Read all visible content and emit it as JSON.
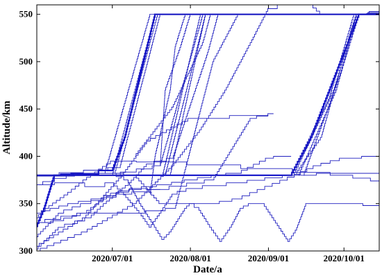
{
  "chart_data": {
    "type": "line",
    "title": "",
    "xlabel": "Date/a",
    "ylabel": "Altitude/km",
    "x_axis": {
      "type": "date",
      "range": [
        "2020-06-01",
        "2020-10-15"
      ],
      "ticks": [
        "2020/07/01",
        "2020/08/01",
        "2020/09/01",
        "2020/10/01"
      ]
    },
    "y_axis": {
      "range": [
        300,
        560
      ],
      "ticks": [
        300,
        350,
        400,
        450,
        500,
        550
      ]
    },
    "grid": false,
    "legend": "none",
    "color": "#1f1fbf",
    "series": [
      {
        "values": [
          [
            "2020-06-01",
            326
          ],
          [
            "2020-06-04",
            345
          ],
          [
            "2020-06-08",
            380
          ],
          [
            "2020-09-10",
            380
          ],
          [
            "2020-09-18",
            420
          ],
          [
            "2020-10-07",
            550
          ],
          [
            "2020-10-15",
            550
          ]
        ]
      },
      {
        "values": [
          [
            "2020-06-01",
            380
          ],
          [
            "2020-06-20",
            381
          ],
          [
            "2020-07-01",
            385
          ],
          [
            "2020-07-06",
            420
          ],
          [
            "2020-07-18",
            550
          ],
          [
            "2020-10-15",
            550
          ]
        ]
      },
      {
        "values": [
          [
            "2020-06-01",
            380
          ],
          [
            "2020-07-01",
            380
          ],
          [
            "2020-07-18",
            550
          ],
          [
            "2020-10-15",
            550
          ]
        ]
      },
      {
        "values": [
          [
            "2020-06-01",
            380
          ],
          [
            "2020-06-28",
            382
          ],
          [
            "2020-07-16",
            550
          ],
          [
            "2020-10-15",
            550
          ]
        ]
      },
      {
        "values": [
          [
            "2020-06-01",
            380
          ],
          [
            "2020-07-02",
            382
          ],
          [
            "2020-07-19",
            550
          ],
          [
            "2020-10-15",
            550
          ]
        ]
      },
      {
        "values": [
          [
            "2020-06-05",
            380
          ],
          [
            "2020-07-04",
            388
          ],
          [
            "2020-07-20",
            550
          ],
          [
            "2020-10-15",
            550
          ]
        ]
      },
      {
        "values": [
          [
            "2020-07-01",
            380
          ],
          [
            "2020-07-20",
            390
          ],
          [
            "2020-08-06",
            550
          ],
          [
            "2020-10-15",
            550
          ]
        ]
      },
      {
        "values": [
          [
            "2020-07-21",
            380
          ],
          [
            "2020-08-05",
            550
          ],
          [
            "2020-10-15",
            550
          ]
        ]
      },
      {
        "values": [
          [
            "2020-07-22",
            380
          ],
          [
            "2020-08-07",
            550
          ],
          [
            "2020-10-15",
            550
          ]
        ]
      },
      {
        "values": [
          [
            "2020-07-10",
            400
          ],
          [
            "2020-07-25",
            452
          ],
          [
            "2020-08-06",
            520
          ],
          [
            "2020-08-09",
            550
          ],
          [
            "2020-10-15",
            550
          ]
        ]
      },
      {
        "values": [
          [
            "2020-07-24",
            380
          ],
          [
            "2020-08-07",
            550
          ],
          [
            "2020-10-15",
            550
          ]
        ]
      },
      {
        "values": [
          [
            "2020-09-10",
            380
          ],
          [
            "2020-09-25",
            460
          ],
          [
            "2020-10-05",
            550
          ],
          [
            "2020-10-15",
            551
          ]
        ]
      },
      {
        "values": [
          [
            "2020-09-11",
            380
          ],
          [
            "2020-09-27",
            470
          ],
          [
            "2020-10-06",
            550
          ],
          [
            "2020-10-15",
            551
          ]
        ]
      },
      {
        "values": [
          [
            "2020-09-13",
            380
          ],
          [
            "2020-09-28",
            470
          ],
          [
            "2020-10-06",
            550
          ],
          [
            "2020-10-15",
            551
          ]
        ]
      },
      {
        "values": [
          [
            "2020-09-15",
            380
          ],
          [
            "2020-09-30",
            490
          ],
          [
            "2020-10-07",
            550
          ],
          [
            "2020-10-15",
            553
          ]
        ]
      },
      {
        "values": [
          [
            "2020-09-12",
            382
          ],
          [
            "2020-09-22",
            420
          ],
          [
            "2020-10-04",
            535
          ],
          [
            "2020-10-06",
            550
          ],
          [
            "2020-10-15",
            552
          ]
        ]
      },
      {
        "values": [
          [
            "2020-06-01",
            305
          ],
          [
            "2020-06-20",
            335
          ],
          [
            "2020-07-05",
            380
          ],
          [
            "2020-07-15",
            416
          ],
          [
            "2020-08-01",
            440
          ],
          [
            "2020-09-01",
            443
          ]
        ]
      },
      {
        "values": [
          [
            "2020-06-01",
            315
          ],
          [
            "2020-06-10",
            340
          ],
          [
            "2020-06-20",
            350
          ],
          [
            "2020-07-05",
            360
          ],
          [
            "2020-07-20",
            365
          ],
          [
            "2020-08-10",
            375
          ],
          [
            "2020-08-25",
            440
          ],
          [
            "2020-09-03",
            445
          ]
        ]
      },
      {
        "values": [
          [
            "2020-06-01",
            300
          ],
          [
            "2020-06-20",
            320
          ],
          [
            "2020-07-10",
            350
          ],
          [
            "2020-07-25",
            390
          ],
          [
            "2020-08-05",
            428
          ],
          [
            "2020-08-15",
            470
          ],
          [
            "2020-08-25",
            520
          ],
          [
            "2020-09-01",
            556
          ],
          [
            "2020-09-08",
            560
          ],
          [
            "2020-09-18",
            560
          ],
          [
            "2020-09-22",
            550
          ]
        ]
      },
      {
        "values": [
          [
            "2020-06-01",
            330
          ],
          [
            "2020-06-20",
            340
          ],
          [
            "2020-07-10",
            340
          ],
          [
            "2020-07-26",
            345
          ],
          [
            "2020-08-10",
            500
          ],
          [
            "2020-08-20",
            550
          ],
          [
            "2020-09-20",
            550
          ]
        ]
      },
      {
        "values": [
          [
            "2020-06-01",
            302
          ],
          [
            "2020-06-10",
            325
          ],
          [
            "2020-06-22",
            335
          ],
          [
            "2020-06-28",
            350
          ],
          [
            "2020-07-08",
            372
          ],
          [
            "2020-07-15",
            392
          ],
          [
            "2020-07-25",
            398
          ],
          [
            "2020-08-08",
            510
          ],
          [
            "2020-08-12",
            550
          ]
        ]
      },
      {
        "values": [
          [
            "2020-07-16",
            360
          ],
          [
            "2020-07-18",
            400
          ],
          [
            "2020-07-24",
            470
          ],
          [
            "2020-07-26",
            516
          ],
          [
            "2020-07-30",
            550
          ]
        ]
      },
      {
        "values": [
          [
            "2020-07-20",
            390
          ],
          [
            "2020-07-22",
            470
          ],
          [
            "2020-07-28",
            515
          ],
          [
            "2020-08-01",
            550
          ]
        ]
      },
      {
        "values": [
          [
            "2020-06-01",
            370
          ],
          [
            "2020-06-15",
            380
          ],
          [
            "2020-07-01",
            382
          ],
          [
            "2020-07-10",
            380
          ],
          [
            "2020-07-20",
            350
          ],
          [
            "2020-08-01",
            350
          ],
          [
            "2020-08-10",
            350
          ],
          [
            "2020-08-20",
            355
          ],
          [
            "2020-08-29",
            365
          ],
          [
            "2020-09-10",
            378
          ],
          [
            "2020-09-20",
            390
          ],
          [
            "2020-10-01",
            398
          ],
          [
            "2020-10-15",
            400
          ]
        ]
      },
      {
        "values": [
          [
            "2020-06-01",
            379
          ],
          [
            "2020-07-01",
            382
          ],
          [
            "2020-07-07",
            375
          ],
          [
            "2020-07-12",
            350
          ],
          [
            "2020-07-18",
            325
          ],
          [
            "2020-07-21",
            312
          ],
          [
            "2020-07-24",
            320
          ],
          [
            "2020-07-30",
            345
          ],
          [
            "2020-08-01",
            350
          ],
          [
            "2020-08-04",
            346
          ],
          [
            "2020-08-09",
            325
          ],
          [
            "2020-08-13",
            310
          ],
          [
            "2020-08-17",
            325
          ],
          [
            "2020-08-21",
            345
          ],
          [
            "2020-08-25",
            350
          ],
          [
            "2020-08-30",
            350
          ],
          [
            "2020-09-02",
            338
          ],
          [
            "2020-09-07",
            318
          ],
          [
            "2020-09-09",
            310
          ],
          [
            "2020-09-12",
            322
          ],
          [
            "2020-09-16",
            350
          ],
          [
            "2020-09-21",
            350
          ],
          [
            "2020-10-02",
            350
          ],
          [
            "2020-10-15",
            348
          ]
        ]
      },
      {
        "values": [
          [
            "2020-06-01",
            370
          ],
          [
            "2020-06-15",
            372
          ],
          [
            "2020-06-25",
            368
          ],
          [
            "2020-07-01",
            372
          ],
          [
            "2020-07-05",
            362
          ],
          [
            "2020-07-12",
            340
          ],
          [
            "2020-07-16",
            325
          ],
          [
            "2020-07-20",
            340
          ],
          [
            "2020-07-25",
            360
          ],
          [
            "2020-08-01",
            366
          ],
          [
            "2020-08-20",
            372
          ],
          [
            "2020-09-10",
            380
          ],
          [
            "2020-09-30",
            382
          ],
          [
            "2020-10-15",
            382
          ]
        ]
      },
      {
        "values": [
          [
            "2020-06-01",
            335
          ],
          [
            "2020-06-05",
            345
          ],
          [
            "2020-06-14",
            362
          ],
          [
            "2020-06-20",
            375
          ],
          [
            "2020-07-01",
            395
          ],
          [
            "2020-07-20",
            394
          ],
          [
            "2020-08-10",
            391
          ],
          [
            "2020-09-01",
            387
          ],
          [
            "2020-09-20",
            383
          ],
          [
            "2020-10-01",
            380
          ],
          [
            "2020-10-15",
            374
          ]
        ]
      },
      {
        "values": [
          [
            "2020-06-01",
            330
          ],
          [
            "2020-06-05",
            330
          ],
          [
            "2020-06-10",
            332
          ],
          [
            "2020-06-20",
            340
          ],
          [
            "2020-06-28",
            355
          ],
          [
            "2020-07-01",
            361
          ],
          [
            "2020-07-10",
            366
          ],
          [
            "2020-07-20",
            365
          ]
        ]
      },
      {
        "values": [
          [
            "2020-06-01",
            340
          ],
          [
            "2020-06-08",
            345
          ],
          [
            "2020-06-15",
            350
          ],
          [
            "2020-06-25",
            355
          ],
          [
            "2020-07-05",
            362
          ],
          [
            "2020-07-15",
            368
          ],
          [
            "2020-07-22",
            370
          ],
          [
            "2020-08-01",
            375
          ],
          [
            "2020-08-12",
            380
          ]
        ]
      },
      {
        "values": [
          [
            "2020-08-10",
            380
          ],
          [
            "2020-08-20",
            382
          ],
          [
            "2020-09-01",
            398
          ],
          [
            "2020-09-05",
            400
          ],
          [
            "2020-09-10",
            400
          ]
        ]
      }
    ]
  }
}
